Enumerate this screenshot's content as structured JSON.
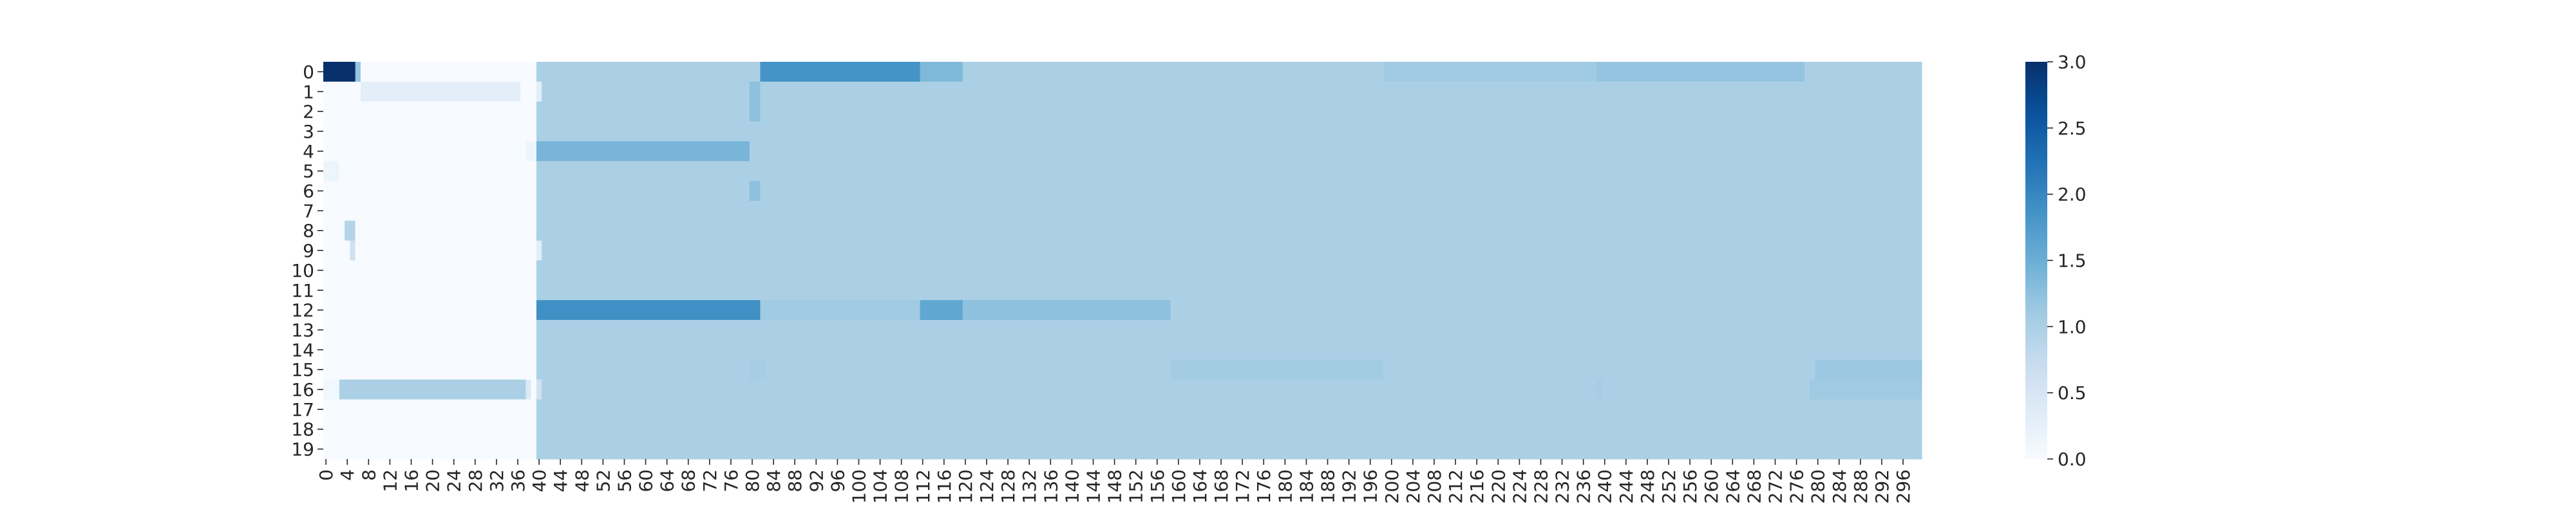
{
  "chart_data": {
    "type": "heatmap",
    "title": "",
    "xlabel": "",
    "ylabel": "",
    "n_rows": 20,
    "n_cols": 300,
    "x_ticks": [
      0,
      4,
      8,
      12,
      16,
      20,
      24,
      28,
      32,
      36,
      40,
      44,
      48,
      52,
      56,
      60,
      64,
      68,
      72,
      76,
      80,
      84,
      88,
      92,
      96,
      100,
      104,
      108,
      112,
      116,
      120,
      124,
      128,
      132,
      136,
      140,
      144,
      148,
      152,
      156,
      160,
      164,
      168,
      172,
      176,
      180,
      184,
      188,
      192,
      196,
      200,
      204,
      208,
      212,
      216,
      220,
      224,
      228,
      232,
      236,
      240,
      244,
      248,
      252,
      256,
      260,
      264,
      268,
      272,
      276,
      280,
      284,
      288,
      292,
      296
    ],
    "y_ticks": [
      0,
      1,
      2,
      3,
      4,
      5,
      6,
      7,
      8,
      9,
      10,
      11,
      12,
      13,
      14,
      15,
      16,
      17,
      18,
      19
    ],
    "colorbar": {
      "min": 0.0,
      "max": 3.0,
      "ticks": [
        "0.0",
        "0.5",
        "1.0",
        "1.5",
        "2.0",
        "2.5",
        "3.0"
      ],
      "colormap": "Blues"
    },
    "baseline_segments": [
      {
        "col_start": 0,
        "col_end": 40,
        "value": 0.0
      },
      {
        "col_start": 40,
        "col_end": 300,
        "value": 1.0
      }
    ],
    "overrides": [
      {
        "row": 0,
        "col_start": 0,
        "col_end": 6,
        "value": 3.0
      },
      {
        "row": 0,
        "col_start": 6,
        "col_end": 7,
        "value": 1.2
      },
      {
        "row": 0,
        "col_start": 82,
        "col_end": 112,
        "value": 1.85
      },
      {
        "row": 0,
        "col_start": 112,
        "col_end": 120,
        "value": 1.35
      },
      {
        "row": 0,
        "col_start": 199,
        "col_end": 239,
        "value": 1.1
      },
      {
        "row": 0,
        "col_start": 239,
        "col_end": 278,
        "value": 1.2
      },
      {
        "row": 1,
        "col_start": 7,
        "col_end": 37,
        "value": 0.3
      },
      {
        "row": 1,
        "col_start": 40,
        "col_end": 41,
        "value": 0.3
      },
      {
        "row": 1,
        "col_start": 80,
        "col_end": 82,
        "value": 1.25
      },
      {
        "row": 2,
        "col_start": 80,
        "col_end": 82,
        "value": 1.25
      },
      {
        "row": 4,
        "col_start": 38,
        "col_end": 40,
        "value": 0.15
      },
      {
        "row": 4,
        "col_start": 40,
        "col_end": 80,
        "value": 1.4
      },
      {
        "row": 5,
        "col_start": 0,
        "col_end": 3,
        "value": 0.15
      },
      {
        "row": 6,
        "col_start": 80,
        "col_end": 82,
        "value": 1.25
      },
      {
        "row": 8,
        "col_start": 4,
        "col_end": 6,
        "value": 0.9
      },
      {
        "row": 9,
        "col_start": 5,
        "col_end": 6,
        "value": 0.6
      },
      {
        "row": 9,
        "col_start": 40,
        "col_end": 41,
        "value": 0.3
      },
      {
        "row": 12,
        "col_start": 40,
        "col_end": 82,
        "value": 1.9
      },
      {
        "row": 12,
        "col_start": 82,
        "col_end": 112,
        "value": 1.1
      },
      {
        "row": 12,
        "col_start": 112,
        "col_end": 120,
        "value": 1.6
      },
      {
        "row": 12,
        "col_start": 120,
        "col_end": 159,
        "value": 1.25
      },
      {
        "row": 15,
        "col_start": 159,
        "col_end": 199,
        "value": 1.08
      },
      {
        "row": 15,
        "col_start": 80,
        "col_end": 83,
        "value": 1.05
      },
      {
        "row": 15,
        "col_start": 280,
        "col_end": 300,
        "value": 1.15
      },
      {
        "row": 16,
        "col_start": 0,
        "col_end": 3,
        "value": 0.1
      },
      {
        "row": 16,
        "col_start": 3,
        "col_end": 38,
        "value": 1.0
      },
      {
        "row": 16,
        "col_start": 38,
        "col_end": 39,
        "value": 0.4
      },
      {
        "row": 16,
        "col_start": 40,
        "col_end": 41,
        "value": 0.6
      },
      {
        "row": 16,
        "col_start": 239,
        "col_end": 240,
        "value": 1.05
      },
      {
        "row": 16,
        "col_start": 279,
        "col_end": 300,
        "value": 1.12
      }
    ]
  }
}
